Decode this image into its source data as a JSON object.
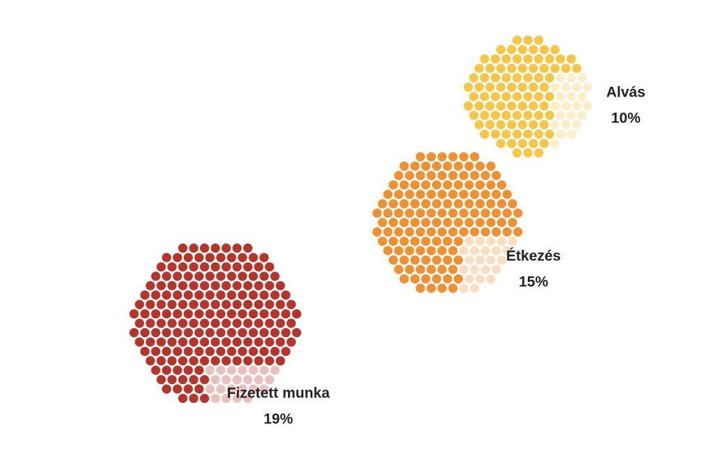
{
  "chart_data": {
    "type": "dot-cluster",
    "categories": [
      "Alvás",
      "Étkezés",
      "Fizetett munka"
    ],
    "values": [
      10,
      15,
      19
    ],
    "value_labels": [
      "10%",
      "15%",
      "19%"
    ],
    "colors": [
      "#f6c646",
      "#ef9130",
      "#b5352b"
    ]
  }
}
